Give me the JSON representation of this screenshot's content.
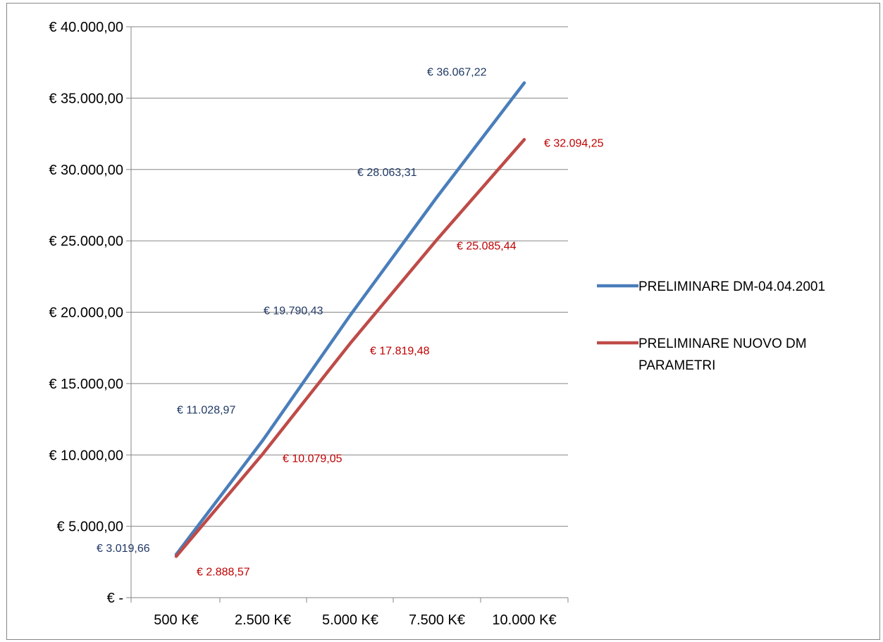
{
  "chart_data": {
    "type": "line",
    "categories": [
      "500 K€",
      "2.500 K€",
      "5.000 K€",
      "7.500 K€",
      "10.000 K€"
    ],
    "y_tick_labels": [
      "€ -",
      "€ 5.000,00",
      "€ 10.000,00",
      "€ 15.000,00",
      "€ 20.000,00",
      "€ 25.000,00",
      "€ 30.000,00",
      "€ 35.000,00",
      "€ 40.000,00"
    ],
    "ylim": [
      0,
      40000
    ],
    "grid": true,
    "legend_position": "right",
    "series": [
      {
        "name": "PRELIMINARE DM-04.04.2001",
        "color": "#4a7ebb",
        "label_color": "#1f3864",
        "values": [
          3019.66,
          11028.97,
          19790.43,
          28063.31,
          36067.22
        ],
        "labels": [
          "€ 3.019,66",
          "€ 11.028,97",
          "€ 19.790,43",
          "€ 28.063,31",
          "€ 36.067,22"
        ]
      },
      {
        "name": "PRELIMINARE NUOVO DM PARAMETRI",
        "legend_lines": [
          "PRELIMINARE NUOVO DM",
          "PARAMETRI"
        ],
        "color": "#be4b48",
        "label_color": "#c00000",
        "values": [
          2888.57,
          10079.05,
          17819.48,
          25085.44,
          32094.25
        ],
        "labels": [
          "€ 2.888,57",
          "€ 10.079,05",
          "€ 17.819,48",
          "€ 25.085,44",
          "€ 32.094,25"
        ]
      }
    ]
  }
}
